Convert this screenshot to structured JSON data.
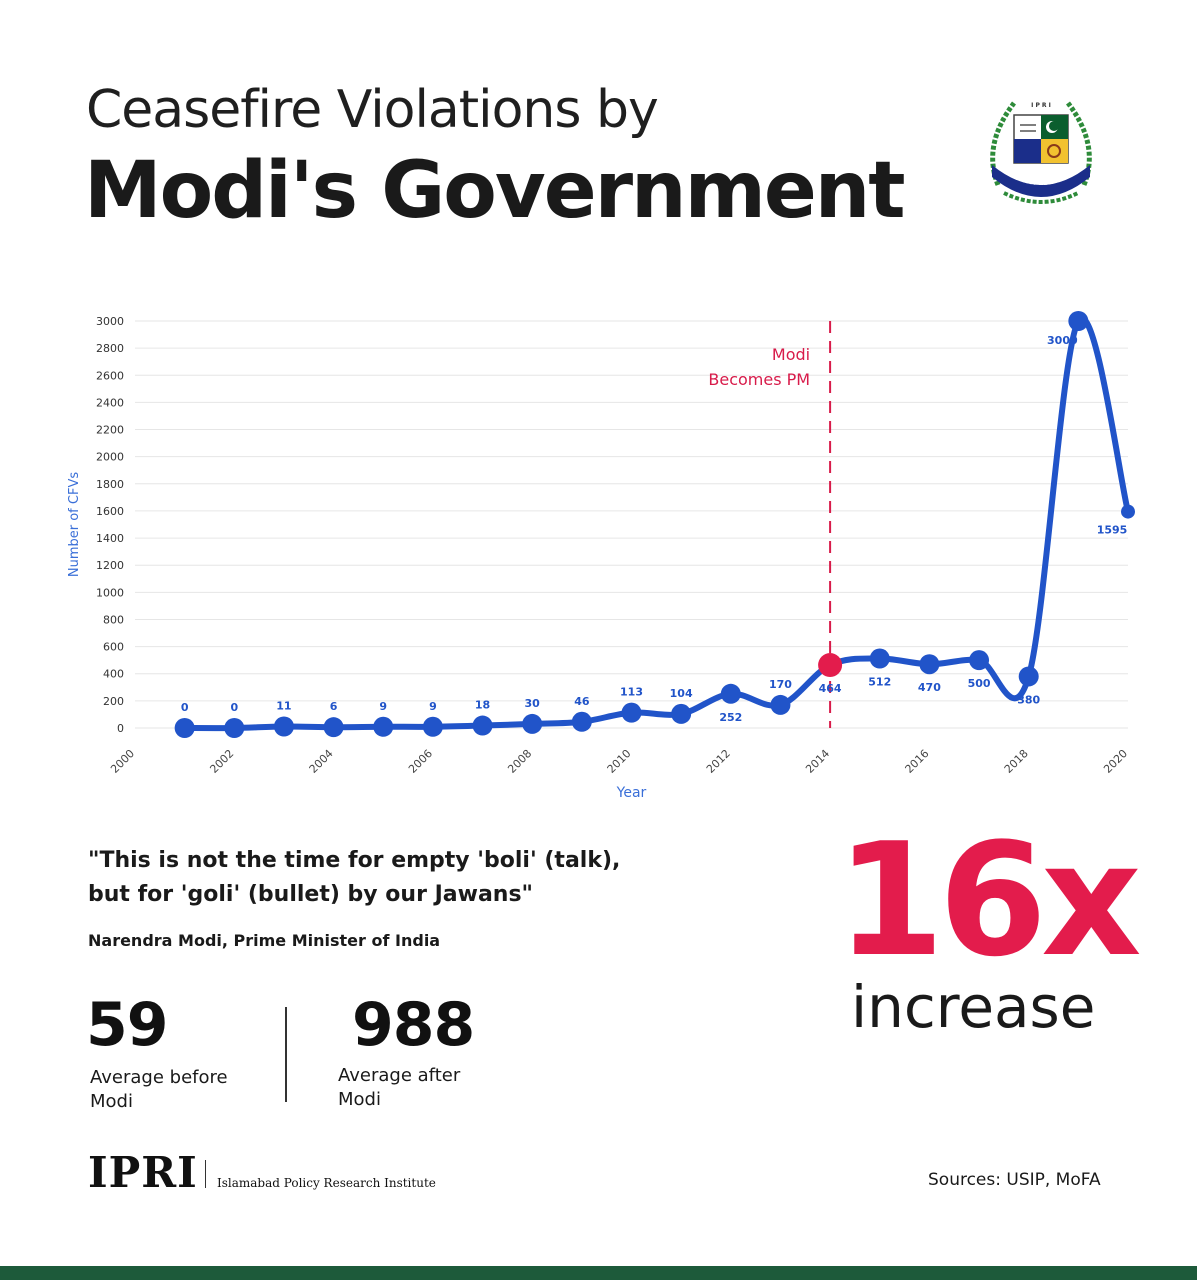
{
  "header": {
    "title_line1": "Ceasefire Violations by",
    "title_line2": "Modi's Government"
  },
  "logo": {
    "arc_text": "ISLAMABAD POLICY RESEARCH INSTITUTE",
    "monogram": "I P R I"
  },
  "colors": {
    "line": "#2154c9",
    "marker_highlight": "#e31c4c",
    "annotation": "#d81b4a",
    "axis_title": "#3a6fd8",
    "grid": "#e6e6e6",
    "accent": "#e31c4c",
    "footer": "#1d5a3a"
  },
  "chart_data": {
    "type": "line",
    "title": "",
    "xlabel": "Year",
    "ylabel": "Number of CFVs",
    "xlim": [
      2000,
      2020
    ],
    "ylim": [
      0,
      3000
    ],
    "x_ticks": [
      "2000",
      "2002",
      "2004",
      "2006",
      "2008",
      "2010",
      "2012",
      "2014",
      "2016",
      "2018",
      "2020"
    ],
    "y_ticks": [
      "0",
      "200",
      "400",
      "600",
      "800",
      "1000",
      "1200",
      "1400",
      "1600",
      "1800",
      "2000",
      "2200",
      "2400",
      "2600",
      "2800",
      "3000"
    ],
    "grid": true,
    "series": [
      {
        "x": [
          2001,
          2002,
          2003,
          2004,
          2005,
          2006,
          2007,
          2008,
          2009,
          2010,
          2011,
          2012,
          2013,
          2014,
          2015,
          2016,
          2017,
          2018,
          2019,
          2020
        ],
        "values": [
          0,
          0,
          11,
          6,
          9,
          9,
          18,
          30,
          46,
          113,
          104,
          252,
          170,
          464,
          512,
          470,
          500,
          380,
          3000,
          1595
        ],
        "labels": [
          "0",
          "0",
          "11",
          "6",
          "9",
          "9",
          "18",
          "30",
          "46",
          "113",
          "104",
          "252",
          "170",
          "464",
          "512",
          "470",
          "500",
          "380",
          "3000",
          "1595"
        ]
      }
    ],
    "highlight_point": {
      "x": 2014,
      "value": 464
    },
    "annotation": {
      "x": 2014,
      "line1": "Modi",
      "line2": "Becomes PM"
    }
  },
  "quote": {
    "line1": "\"This is not the time for empty 'boli' (talk),",
    "line2": "but for 'goli' (bullet) by our Jawans\"",
    "attribution": "Narendra Modi, Prime Minister of India"
  },
  "stats": {
    "before": {
      "value": "59",
      "label_line1": "Average before",
      "label_line2": "Modi"
    },
    "after": {
      "value": "988",
      "label_line1": "Average after",
      "label_line2": "Modi"
    },
    "multiplier": "16x",
    "multiplier_label": "increase"
  },
  "footer": {
    "org_short": "IPRI",
    "org_full": "Islamabad Policy Research Institute",
    "sources": "Sources: USIP, MoFA"
  }
}
